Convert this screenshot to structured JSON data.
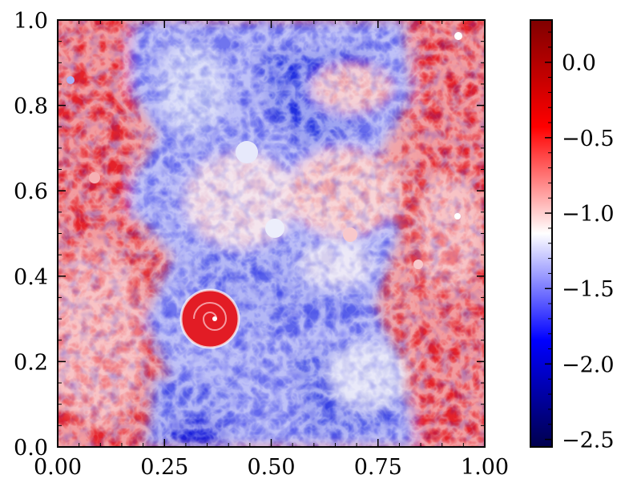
{
  "chart_data": {
    "type": "heatmap",
    "title": "",
    "xlabel": "",
    "ylabel": "",
    "xlim": [
      0.0,
      1.0
    ],
    "ylim": [
      0.0,
      1.0
    ],
    "x_ticks": [
      {
        "value": 0.0,
        "label": "0.00"
      },
      {
        "value": 0.25,
        "label": "0.25"
      },
      {
        "value": 0.5,
        "label": "0.50"
      },
      {
        "value": 0.75,
        "label": "0.75"
      },
      {
        "value": 1.0,
        "label": "1.00"
      }
    ],
    "y_ticks": [
      {
        "value": 0.0,
        "label": "0.0"
      },
      {
        "value": 0.2,
        "label": "0.2"
      },
      {
        "value": 0.4,
        "label": "0.4"
      },
      {
        "value": 0.6,
        "label": "0.6"
      },
      {
        "value": 0.8,
        "label": "0.8"
      },
      {
        "value": 1.0,
        "label": "1.0"
      }
    ],
    "colorbar": {
      "range": [
        -2.55,
        0.28
      ],
      "colormap": "seismic",
      "ticks": [
        {
          "value": 0.0,
          "label": "0.0"
        },
        {
          "value": -0.5,
          "label": "−0.5"
        },
        {
          "value": -1.0,
          "label": "−1.0"
        },
        {
          "value": -1.5,
          "label": "−1.5"
        },
        {
          "value": -2.0,
          "label": "−2.0"
        },
        {
          "value": -2.5,
          "label": "−2.5"
        }
      ],
      "colors": [
        "#00004d",
        "#0000ff",
        "#ffffff",
        "#ff0000",
        "#800000"
      ]
    },
    "grid": false,
    "legend": "none",
    "field_description": "turbulent scalar field; high values at left and right edges, low values in central band, large vortex near (0.36, 0.30)"
  }
}
